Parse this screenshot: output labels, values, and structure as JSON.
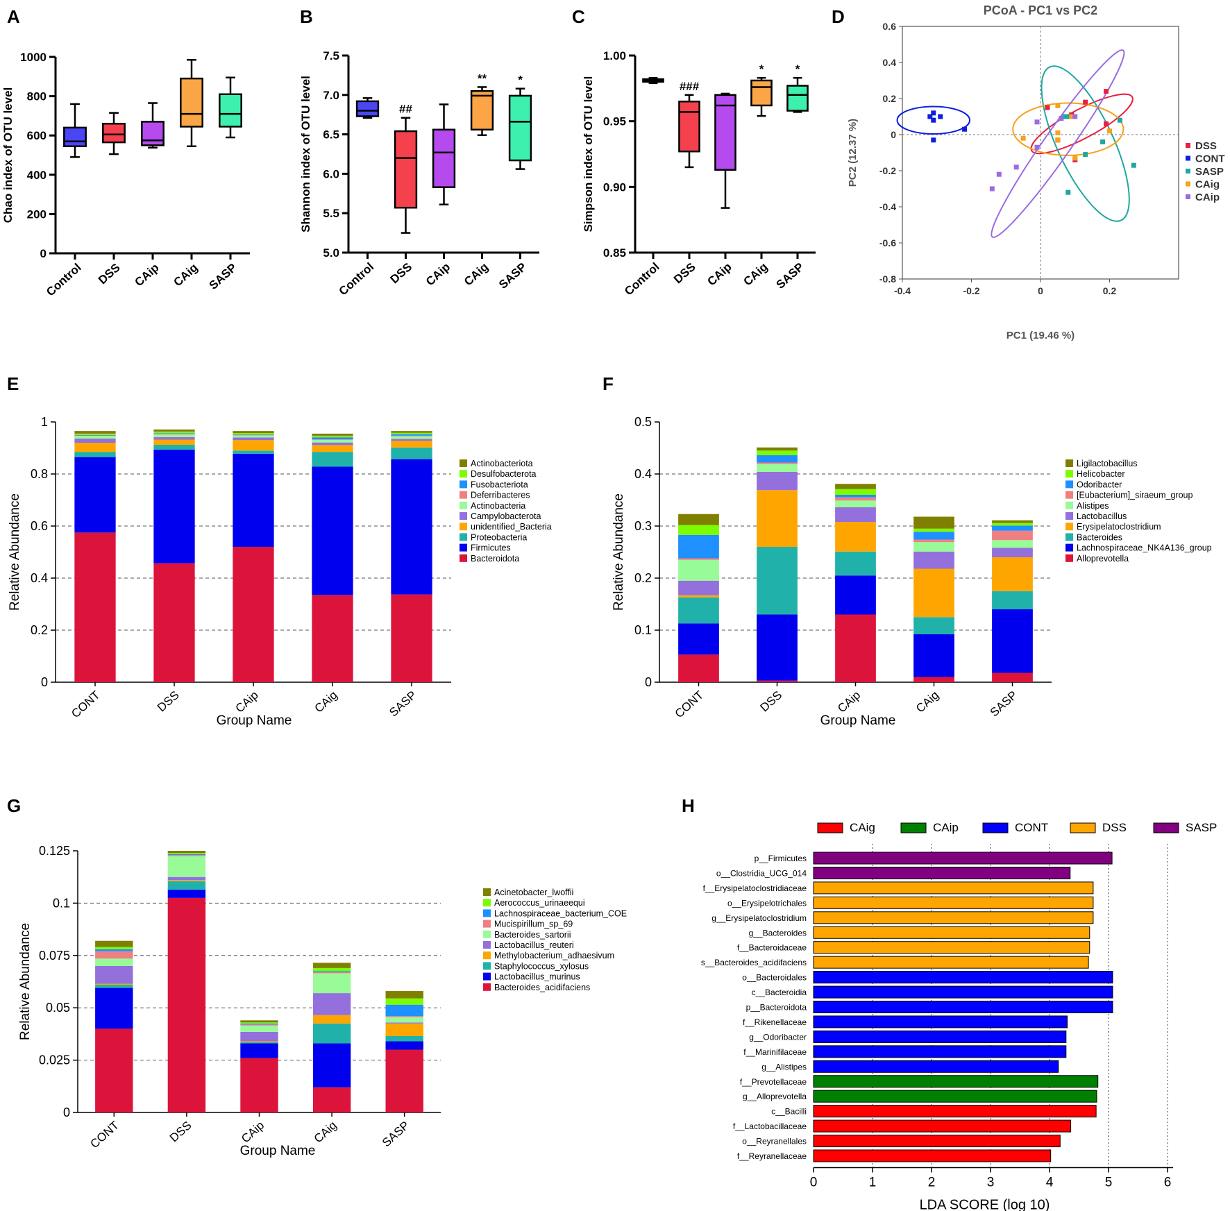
{
  "panel_letters": [
    "A",
    "B",
    "C",
    "D",
    "E",
    "F",
    "G",
    "H"
  ],
  "group_colors": {
    "Control": "#4a46f5",
    "CONT": "#0f1ee0",
    "DSS": "#f5404d",
    "CAip": "#b54bef",
    "CAig": "#fca547",
    "SASP": "#3df0ad"
  },
  "chart_data": [
    {
      "id": "A",
      "type": "box",
      "ylabel": "Chao index of OTU level",
      "categories": [
        "Control",
        "DSS",
        "CAip",
        "CAig",
        "SASP"
      ],
      "yticks": [
        "0",
        "200",
        "400",
        "600",
        "800",
        "1000"
      ],
      "ylim": [
        0,
        1000
      ],
      "boxes": [
        {
          "min": 490,
          "q1": 545,
          "median": 570,
          "q3": 640,
          "max": 760
        },
        {
          "min": 505,
          "q1": 565,
          "median": 605,
          "q3": 660,
          "max": 715
        },
        {
          "min": 538,
          "q1": 550,
          "median": 575,
          "q3": 670,
          "max": 765
        },
        {
          "min": 545,
          "q1": 645,
          "median": 710,
          "q3": 890,
          "max": 985
        },
        {
          "min": 590,
          "q1": 645,
          "median": 710,
          "q3": 810,
          "max": 895
        }
      ],
      "annotations": [
        "",
        "",
        "",
        "",
        ""
      ]
    },
    {
      "id": "B",
      "type": "box",
      "ylabel": "Shannon index of OTU level",
      "categories": [
        "Control",
        "DSS",
        "CAip",
        "CAig",
        "SASP"
      ],
      "yticks": [
        "5.0",
        "5.5",
        "6.0",
        "6.5",
        "7.0",
        "7.5"
      ],
      "ylim": [
        5.0,
        7.5
      ],
      "boxes": [
        {
          "min": 6.71,
          "q1": 6.73,
          "median": 6.8,
          "q3": 6.92,
          "max": 6.96
        },
        {
          "min": 5.25,
          "q1": 5.57,
          "median": 6.2,
          "q3": 6.54,
          "max": 6.71
        },
        {
          "min": 5.61,
          "q1": 5.83,
          "median": 6.27,
          "q3": 6.56,
          "max": 6.88
        },
        {
          "min": 6.49,
          "q1": 6.56,
          "median": 6.99,
          "q3": 7.05,
          "max": 7.1
        },
        {
          "min": 6.06,
          "q1": 6.17,
          "median": 6.66,
          "q3": 6.99,
          "max": 7.08
        }
      ],
      "annotations": [
        "",
        "##",
        "",
        "**",
        "*"
      ]
    },
    {
      "id": "C",
      "type": "box",
      "ylabel": "Simpson index of OTU level",
      "categories": [
        "Control",
        "DSS",
        "CAip",
        "CAig",
        "SASP"
      ],
      "yticks": [
        "0.85",
        "0.90",
        "0.95",
        "1.00"
      ],
      "ylim": [
        0.85,
        1.0
      ],
      "boxes": [
        {
          "min": 0.979,
          "q1": 0.98,
          "median": 0.981,
          "q3": 0.982,
          "max": 0.983
        },
        {
          "min": 0.915,
          "q1": 0.927,
          "median": 0.957,
          "q3": 0.965,
          "max": 0.97
        },
        {
          "min": 0.884,
          "q1": 0.913,
          "median": 0.962,
          "q3": 0.97,
          "max": 0.971
        },
        {
          "min": 0.954,
          "q1": 0.962,
          "median": 0.976,
          "q3": 0.981,
          "max": 0.983
        },
        {
          "min": 0.957,
          "q1": 0.958,
          "median": 0.97,
          "q3": 0.977,
          "max": 0.983
        }
      ],
      "annotations": [
        "",
        "###",
        "",
        "*",
        "*"
      ]
    },
    {
      "id": "D",
      "type": "scatter",
      "title": "PCoA - PC1 vs PC2",
      "xlabel": "PC1 (19.46 %)",
      "ylabel": "PC2 (12.37 %)",
      "xlim": [
        -0.4,
        0.4
      ],
      "ylim": [
        -0.8,
        0.6
      ],
      "xticks": [
        "-0.4",
        "-0.2",
        "0",
        "0.2"
      ],
      "yticks": [
        "-0.8",
        "-0.6",
        "-0.4",
        "-0.2",
        "0",
        "0.2",
        "0.4",
        "0.6"
      ],
      "legend": [
        "DSS",
        "CONT",
        "SASP",
        "CAig",
        "CAip"
      ],
      "series": [
        {
          "name": "DSS",
          "color": "#e8203e",
          "points": [
            [
              0.02,
              0.15
            ],
            [
              0.09,
              0.11
            ],
            [
              0.13,
              0.18
            ],
            [
              0.19,
              0.24
            ],
            [
              0.19,
              0.06
            ],
            [
              0.05,
              -0.03
            ],
            [
              0.1,
              -0.14
            ]
          ],
          "ellipse": {
            "cx": 0.12,
            "cy": 0.06,
            "rx": 0.165,
            "ry": 0.08,
            "rot": -28
          }
        },
        {
          "name": "CONT",
          "color": "#0f1ee0",
          "points": [
            [
              -0.31,
              0.08
            ],
            [
              -0.29,
              0.1
            ],
            [
              -0.32,
              0.1
            ],
            [
              -0.31,
              0.12
            ],
            [
              -0.31,
              -0.03
            ],
            [
              -0.22,
              0.03
            ]
          ],
          "ellipse": {
            "cx": -0.31,
            "cy": 0.08,
            "rx": 0.105,
            "ry": 0.076,
            "rot": 0
          }
        },
        {
          "name": "SASP",
          "color": "#1ea7a0",
          "points": [
            [
              0.07,
              0.1
            ],
            [
              0.08,
              0.1
            ],
            [
              0.18,
              -0.04
            ],
            [
              0.23,
              0.08
            ],
            [
              0.27,
              -0.17
            ],
            [
              0.13,
              -0.11
            ],
            [
              0.08,
              -0.32
            ]
          ],
          "ellipse": {
            "cx": 0.13,
            "cy": -0.05,
            "rx": 0.245,
            "ry": 0.155,
            "rot": 65
          }
        },
        {
          "name": "CAig",
          "color": "#f5a21c",
          "points": [
            [
              -0.05,
              -0.02
            ],
            [
              0.05,
              0.01
            ],
            [
              0.05,
              -0.03
            ],
            [
              0.05,
              0.16
            ],
            [
              0.1,
              -0.13
            ],
            [
              0.2,
              0.02
            ],
            [
              0.09,
              0.1
            ]
          ],
          "ellipse": {
            "cx": 0.08,
            "cy": 0.03,
            "rx": 0.16,
            "ry": 0.145,
            "rot": 0
          }
        },
        {
          "name": "CAip",
          "color": "#9b6be0",
          "points": [
            [
              -0.07,
              -0.18
            ],
            [
              -0.12,
              -0.22
            ],
            [
              -0.14,
              -0.3
            ],
            [
              -0.01,
              -0.07
            ],
            [
              -0.01,
              0.07
            ],
            [
              0.06,
              0.09
            ],
            [
              0.1,
              0.1
            ]
          ],
          "ellipse": {
            "cx": 0.05,
            "cy": -0.05,
            "rx": 0.33,
            "ry": 0.075,
            "rot": -55
          }
        }
      ]
    },
    {
      "id": "E",
      "type": "stacked_bar",
      "xlabel": "Group Name",
      "ylabel": "Relative Abundance",
      "categories": [
        "CONT",
        "DSS",
        "CAip",
        "CAig",
        "SASP"
      ],
      "ylim": [
        0,
        1
      ],
      "yticks": [
        "0",
        "0.2",
        "0.4",
        "0.6",
        "0.8",
        "1"
      ],
      "series": [
        {
          "name": "Bacteroidota",
          "color": "#dc143c",
          "values": [
            0.575,
            0.457,
            0.52,
            0.335,
            0.337
          ]
        },
        {
          "name": "Firmicutes",
          "color": "#0000ee",
          "values": [
            0.29,
            0.437,
            0.358,
            0.493,
            0.52
          ]
        },
        {
          "name": "Proteobacteria",
          "color": "#20b2aa",
          "values": [
            0.02,
            0.018,
            0.012,
            0.057,
            0.045
          ]
        },
        {
          "name": "unidentified_Bacteria",
          "color": "#ffa500",
          "values": [
            0.035,
            0.02,
            0.04,
            0.026,
            0.025
          ]
        },
        {
          "name": "Campylobacterota",
          "color": "#9370db",
          "values": [
            0.016,
            0.01,
            0.01,
            0.01,
            0.008
          ]
        },
        {
          "name": "Actinobacteria",
          "color": "#98fb98",
          "values": [
            0.01,
            0.01,
            0.008,
            0.01,
            0.01
          ]
        },
        {
          "name": "Deferribacteres",
          "color": "#f08080",
          "values": [
            0.002,
            0.003,
            0.002,
            0.002,
            0.002
          ]
        },
        {
          "name": "Fusobacteriota",
          "color": "#1e90ff",
          "values": [
            0.002,
            0.002,
            0.002,
            0.008,
            0.006
          ]
        },
        {
          "name": "Desulfobacterota",
          "color": "#7cfc00",
          "values": [
            0.005,
            0.006,
            0.005,
            0.006,
            0.005
          ]
        },
        {
          "name": "Actinobacteriota",
          "color": "#808000",
          "values": [
            0.01,
            0.008,
            0.008,
            0.008,
            0.007
          ]
        }
      ]
    },
    {
      "id": "F",
      "type": "stacked_bar",
      "xlabel": "Group Name",
      "ylabel": "Relative Abundance",
      "categories": [
        "CONT",
        "DSS",
        "CAip",
        "CAig",
        "SASP"
      ],
      "ylim": [
        0,
        0.5
      ],
      "yticks": [
        "0",
        "0.1",
        "0.2",
        "0.3",
        "0.4",
        "0.5"
      ],
      "series": [
        {
          "name": "Alloprevotella",
          "color": "#dc143c",
          "values": [
            0.053,
            0.003,
            0.13,
            0.01,
            0.018
          ]
        },
        {
          "name": "Lachnospiraceae_NK4A136_group",
          "color": "#0000ee",
          "values": [
            0.06,
            0.127,
            0.075,
            0.082,
            0.122
          ]
        },
        {
          "name": "Bacteroides",
          "color": "#20b2aa",
          "values": [
            0.05,
            0.13,
            0.046,
            0.033,
            0.035
          ]
        },
        {
          "name": "Erysipelatoclostridium",
          "color": "#ffa500",
          "values": [
            0.004,
            0.109,
            0.057,
            0.093,
            0.065
          ]
        },
        {
          "name": "Lactobacillus",
          "color": "#9370db",
          "values": [
            0.028,
            0.035,
            0.028,
            0.033,
            0.018
          ]
        },
        {
          "name": "Alistipes",
          "color": "#98fb98",
          "values": [
            0.04,
            0.015,
            0.013,
            0.018,
            0.015
          ]
        },
        {
          "name": "[Eubacterium]_siraeum_group",
          "color": "#f08080",
          "values": [
            0.003,
            0.003,
            0.006,
            0.005,
            0.018
          ]
        },
        {
          "name": "Odoribacter",
          "color": "#1e90ff",
          "values": [
            0.045,
            0.014,
            0.005,
            0.015,
            0.01
          ]
        },
        {
          "name": "Helicobacter",
          "color": "#7cfc00",
          "values": [
            0.019,
            0.009,
            0.011,
            0.006,
            0.005
          ]
        },
        {
          "name": "Ligilactobacillus",
          "color": "#808000",
          "values": [
            0.021,
            0.006,
            0.01,
            0.023,
            0.005
          ]
        }
      ]
    },
    {
      "id": "G",
      "type": "stacked_bar",
      "xlabel": "Group Name",
      "ylabel": "Relative Abundance",
      "categories": [
        "CONT",
        "DSS",
        "CAip",
        "CAig",
        "SASP"
      ],
      "ylim": [
        0,
        0.125
      ],
      "yticks": [
        "0",
        "0.025",
        "0.05",
        "0.075",
        "0.1",
        "0.125"
      ],
      "series": [
        {
          "name": "Bacteroides_acidifaciens",
          "color": "#dc143c",
          "values": [
            0.04,
            0.1025,
            0.026,
            0.012,
            0.03
          ]
        },
        {
          "name": "Lactobacillus_murinus",
          "color": "#0000ee",
          "values": [
            0.0195,
            0.004,
            0.007,
            0.021,
            0.004
          ]
        },
        {
          "name": "Staphylococcus_xylosus",
          "color": "#20b2aa",
          "values": [
            0.0015,
            0.004,
            0.0005,
            0.0095,
            0.0025
          ]
        },
        {
          "name": "Methylobacterium_adhaesivum",
          "color": "#ffa500",
          "values": [
            0.0005,
            0.0005,
            0.0005,
            0.004,
            0.006
          ]
        },
        {
          "name": "Lactobacillus_reuteri",
          "color": "#9370db",
          "values": [
            0.0085,
            0.0015,
            0.0045,
            0.0105,
            0.0005
          ]
        },
        {
          "name": "Bacteroides_sartorii",
          "color": "#98fb98",
          "values": [
            0.0035,
            0.01,
            0.003,
            0.0095,
            0.0025
          ]
        },
        {
          "name": "Mucispirillum_sp_69",
          "color": "#f08080",
          "values": [
            0.0035,
            0.0005,
            0.0005,
            0.0005,
            0.0005
          ]
        },
        {
          "name": "Lachnospiraceae_bacterium_COE",
          "color": "#1e90ff",
          "values": [
            0.001,
            0.0005,
            0.0005,
            0.0005,
            0.0055
          ]
        },
        {
          "name": "Aerococcus_urinaeequi",
          "color": "#7cfc00",
          "values": [
            0.001,
            0.0005,
            0.0005,
            0.0015,
            0.003
          ]
        },
        {
          "name": "Acinetobacter_lwoffii",
          "color": "#808000",
          "values": [
            0.003,
            0.001,
            0.001,
            0.0025,
            0.0035
          ]
        }
      ]
    },
    {
      "id": "H",
      "type": "horizontal_bar",
      "xlabel": "LDA SCORE (log 10)",
      "xlim": [
        0,
        6
      ],
      "xticks": [
        "0",
        "1",
        "2",
        "3",
        "4",
        "5",
        "6"
      ],
      "legend": [
        {
          "name": "CAig",
          "color": "#ff0000"
        },
        {
          "name": "CAip",
          "color": "#008000"
        },
        {
          "name": "CONT",
          "color": "#0000ff"
        },
        {
          "name": "DSS",
          "color": "#ffa500"
        },
        {
          "name": "SASP",
          "color": "#800080"
        }
      ],
      "bars": [
        {
          "label": "p__Firmicutes",
          "value": 5.06,
          "group": "SASP"
        },
        {
          "label": "o__Clostridia_UCG_014",
          "value": 4.35,
          "group": "SASP"
        },
        {
          "label": "f__Erysipelatoclostridiaceae",
          "value": 4.74,
          "group": "DSS"
        },
        {
          "label": "o__Erysipelotrichales",
          "value": 4.74,
          "group": "DSS"
        },
        {
          "label": "g__Erysipelatoclostridium",
          "value": 4.74,
          "group": "DSS"
        },
        {
          "label": "g__Bacteroides",
          "value": 4.68,
          "group": "DSS"
        },
        {
          "label": "f__Bacteroidaceae",
          "value": 4.68,
          "group": "DSS"
        },
        {
          "label": "s__Bacteroides_acidifaciens",
          "value": 4.66,
          "group": "DSS"
        },
        {
          "label": "o__Bacteroidales",
          "value": 5.07,
          "group": "CONT"
        },
        {
          "label": "c__Bacteroidia",
          "value": 5.07,
          "group": "CONT"
        },
        {
          "label": "p__Bacteroidota",
          "value": 5.07,
          "group": "CONT"
        },
        {
          "label": "f__Rikenellaceae",
          "value": 4.3,
          "group": "CONT"
        },
        {
          "label": "g__Odoribacter",
          "value": 4.28,
          "group": "CONT"
        },
        {
          "label": "f__Marinifilaceae",
          "value": 4.28,
          "group": "CONT"
        },
        {
          "label": "g__Alistipes",
          "value": 4.15,
          "group": "CONT"
        },
        {
          "label": "f__Prevotellaceae",
          "value": 4.82,
          "group": "CAip"
        },
        {
          "label": "g__Alloprevotella",
          "value": 4.8,
          "group": "CAip"
        },
        {
          "label": "c__Bacilli",
          "value": 4.79,
          "group": "CAig"
        },
        {
          "label": "f__Lactobacillaceae",
          "value": 4.36,
          "group": "CAig"
        },
        {
          "label": "o__Reyranellales",
          "value": 4.18,
          "group": "CAig"
        },
        {
          "label": "f__Reyranellaceae",
          "value": 4.02,
          "group": "CAig"
        }
      ]
    }
  ]
}
